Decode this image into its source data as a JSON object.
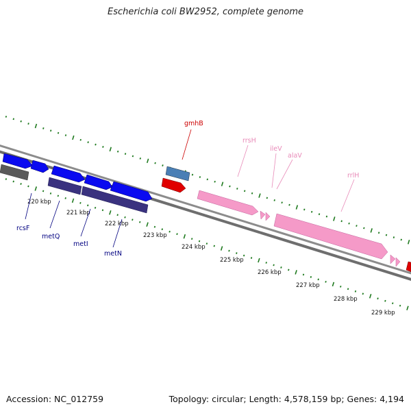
{
  "title": "Escherichia coli BW2952, complete genome",
  "footer": {
    "accession": "Accession: NC_012759",
    "summary": "Topology: circular; Length: 4,578,159 bp; Genes: 4,194"
  },
  "colors": {
    "background": "#ffffff",
    "backbone": "#8c8c8c",
    "tick_green": "#1f7a1f",
    "gene_blue": "#0a0af0",
    "gene_navy": "#3a327f",
    "gene_gray": "#5a5a5a",
    "gene_steel": "#4a7fb5",
    "gene_red": "#e00000",
    "rrna_pink": "#f59ac8",
    "label_red": "#cc0000",
    "label_navy": "#000080",
    "label_pink": "#e88ab8"
  },
  "scale": {
    "unit": "kbp",
    "labels": [
      "220 kbp",
      "221 kbp",
      "222 kbp",
      "223 kbp",
      "224 kbp",
      "225 kbp",
      "226 kbp",
      "227 kbp",
      "228 kbp",
      "229 kbp"
    ]
  },
  "features": [
    {
      "strand": "+",
      "type": "CDS",
      "color": "blue"
    },
    {
      "strand": "+",
      "type": "CDS",
      "color": "blue"
    },
    {
      "strand": "+",
      "type": "CDS",
      "color": "blue"
    },
    {
      "strand": "+",
      "type": "CDS",
      "color": "blue"
    },
    {
      "strand": "+",
      "type": "CDS",
      "color": "blue"
    },
    {
      "strand": "-",
      "type": "CDS",
      "color": "gray"
    },
    {
      "strand": "-",
      "type": "CDS",
      "color": "navy"
    },
    {
      "strand": "-",
      "type": "CDS",
      "color": "navy"
    },
    {
      "strand": "+",
      "type": "CDS",
      "color": "steel"
    },
    {
      "strand": "+",
      "type": "CDS",
      "color": "red"
    },
    {
      "strand": "+",
      "type": "rRNA",
      "color": "pink"
    },
    {
      "strand": "+",
      "type": "tRNA",
      "color": "pink"
    },
    {
      "strand": "+",
      "type": "rRNA",
      "color": "pink"
    },
    {
      "strand": "+",
      "type": "tRNA",
      "color": "pink"
    }
  ],
  "gene_labels": [
    {
      "text": "rcsF",
      "color": "navy"
    },
    {
      "text": "metQ",
      "color": "navy"
    },
    {
      "text": "metI",
      "color": "navy"
    },
    {
      "text": "metN",
      "color": "navy"
    },
    {
      "text": "gmhB",
      "color": "red"
    },
    {
      "text": "rrsH",
      "color": "pink"
    },
    {
      "text": "ileV",
      "color": "pink"
    },
    {
      "text": "alaV",
      "color": "pink"
    },
    {
      "text": "rrlH",
      "color": "pink"
    }
  ]
}
